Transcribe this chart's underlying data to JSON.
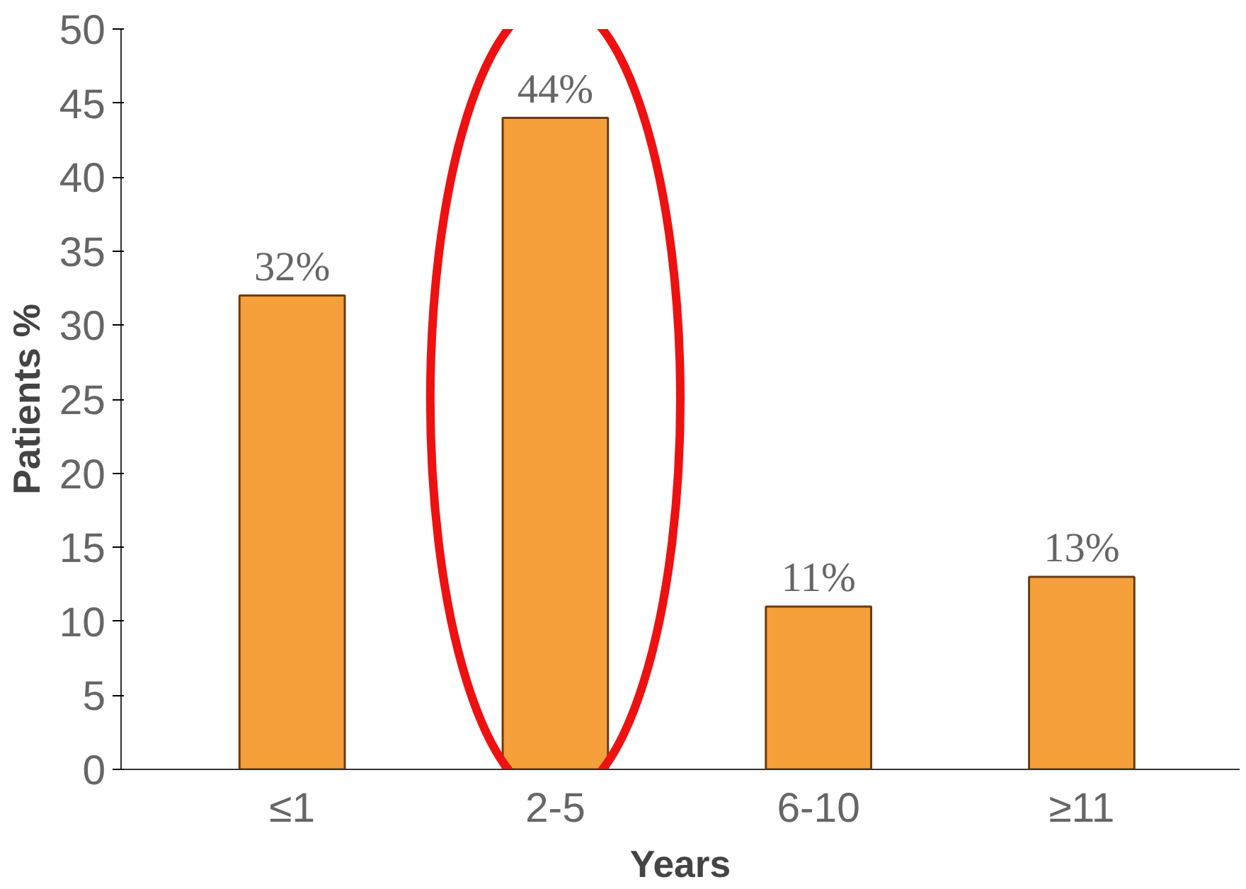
{
  "chart_data": {
    "type": "bar",
    "xlabel": "Years",
    "ylabel": "Patients %",
    "categories": [
      "≤1",
      "2-5",
      "6-10",
      "≥11"
    ],
    "values": [
      32,
      44,
      11,
      13
    ],
    "color": "#f5a03a",
    "value_labels": [
      "32%",
      "44%",
      "11%",
      "13%"
    ],
    "ylim": [
      0,
      50
    ],
    "yticks": [
      0,
      5,
      10,
      15,
      20,
      25,
      30,
      35,
      40,
      45,
      50
    ],
    "grid": false
  }
}
